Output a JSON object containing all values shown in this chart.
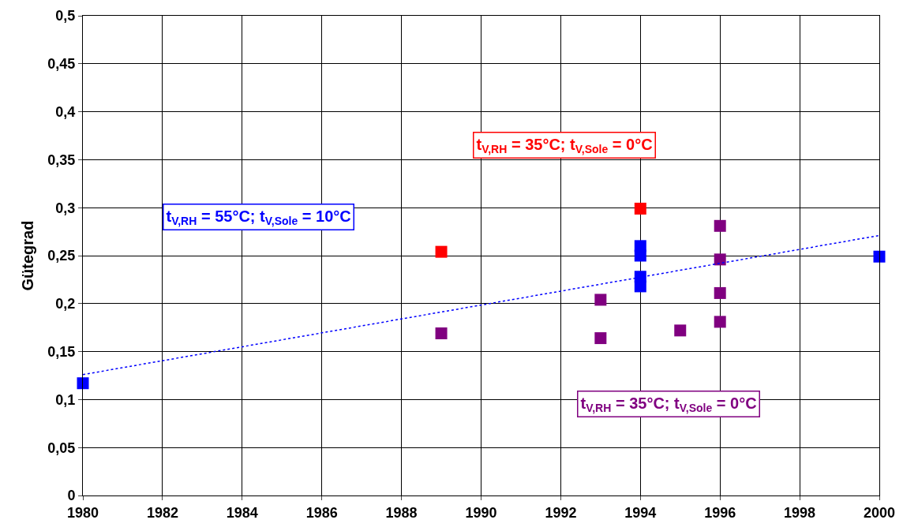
{
  "chart_data": {
    "type": "scatter",
    "ylabel": "Gütegrad",
    "marker": "square",
    "grid": true,
    "xlim": [
      1980,
      2000
    ],
    "xticks": [
      1980,
      1982,
      1984,
      1986,
      1988,
      1990,
      1992,
      1994,
      1996,
      1998,
      2000
    ],
    "ylim": [
      0,
      0.5
    ],
    "yticks": [
      0,
      {
        "value": 0.05,
        "label": "0,05"
      },
      {
        "value": 0.1,
        "label": "0,1"
      },
      {
        "value": 0.15,
        "label": "0,15"
      },
      {
        "value": 0.2,
        "label": "0,2"
      },
      {
        "value": 0.25,
        "label": "0,25"
      },
      {
        "value": 0.3,
        "label": "0,3"
      },
      {
        "value": 0.35,
        "label": "0,35"
      },
      {
        "value": 0.4,
        "label": "0,4"
      },
      {
        "value": 0.45,
        "label": "0,45"
      },
      {
        "value": 0.5,
        "label": "0,5"
      }
    ],
    "series": [
      {
        "name": "t$_{V,RH}$ = 55°C; t$_{V,Sole}$ = 10°C",
        "color": "#0000ff",
        "x": [
          1980,
          1994,
          1994,
          1994,
          1994,
          2000
        ],
        "values": [
          0.117,
          0.26,
          0.25,
          0.228,
          0.218,
          0.249
        ]
      },
      {
        "name": "t$_{V,RH}$ = 35°C; t$_{V,Sole}$ = 0°C",
        "color": "#ff0000",
        "x": [
          1989,
          1994
        ],
        "values": [
          0.254,
          0.299
        ]
      },
      {
        "name": "t$_{V,RH}$ = 35°C; t$_{V,Sole}$ = 0°C",
        "color": "#800080",
        "x": [
          1989,
          1993,
          1993,
          1995,
          1996,
          1996,
          1996,
          1996
        ],
        "values": [
          0.169,
          0.204,
          0.164,
          0.172,
          0.281,
          0.246,
          0.211,
          0.181
        ]
      },
      {
        "type": "line",
        "color": "#0000ff",
        "line_style": "dotted",
        "marker": "none",
        "x": [
          1980,
          2000
        ],
        "values": [
          0.126,
          0.271
        ]
      }
    ]
  }
}
